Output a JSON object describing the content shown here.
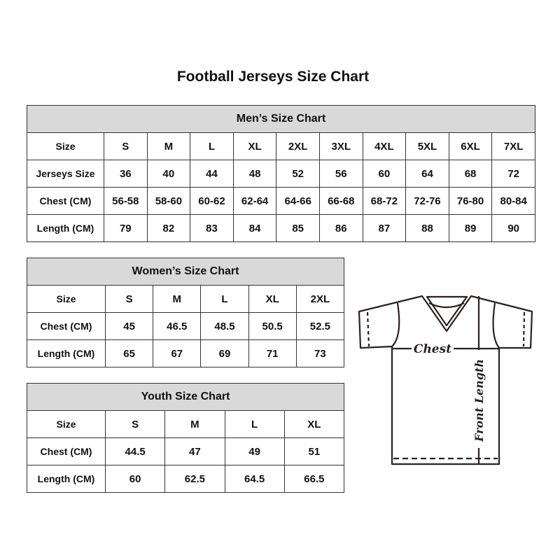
{
  "title": "Football Jerseys Size Chart",
  "men": {
    "heading": "Men’s Size Chart",
    "rows": [
      [
        "Size",
        "S",
        "M",
        "L",
        "XL",
        "2XL",
        "3XL",
        "4XL",
        "5XL",
        "6XL",
        "7XL"
      ],
      [
        "Jerseys Size",
        "36",
        "40",
        "44",
        "48",
        "52",
        "56",
        "60",
        "64",
        "68",
        "72"
      ],
      [
        "Chest (CM)",
        "56-58",
        "58-60",
        "60-62",
        "62-64",
        "64-66",
        "66-68",
        "68-72",
        "72-76",
        "76-80",
        "80-84"
      ],
      [
        "Length (CM)",
        "79",
        "82",
        "83",
        "84",
        "85",
        "86",
        "87",
        "88",
        "89",
        "90"
      ]
    ]
  },
  "women": {
    "heading": "Women’s Size Chart",
    "rows": [
      [
        "Size",
        "S",
        "M",
        "L",
        "XL",
        "2XL"
      ],
      [
        "Chest (CM)",
        "45",
        "46.5",
        "48.5",
        "50.5",
        "52.5"
      ],
      [
        "Length (CM)",
        "65",
        "67",
        "69",
        "71",
        "73"
      ]
    ]
  },
  "youth": {
    "heading": "Youth Size Chart",
    "rows": [
      [
        "Size",
        "S",
        "M",
        "L",
        "XL"
      ],
      [
        "Chest (CM)",
        "44.5",
        "47",
        "49",
        "51"
      ],
      [
        "Length (CM)",
        "60",
        "62.5",
        "64.5",
        "66.5"
      ]
    ]
  },
  "diagram": {
    "chest_label": "Chest",
    "length_label": "Front Length"
  },
  "colors": {
    "header_bg": "#d9d9d9",
    "border": "#333333",
    "line": "#2a2020"
  }
}
